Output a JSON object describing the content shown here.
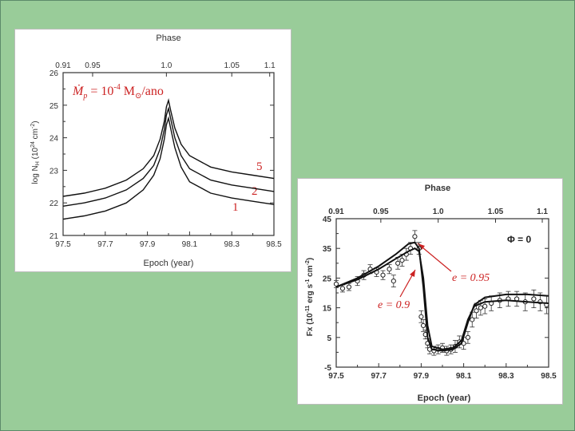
{
  "colors": {
    "background": "#99cc99",
    "annotation": "#cc2222",
    "curve": "#111111"
  },
  "chart_data": [
    {
      "type": "line",
      "title": "Phase",
      "xlabel": "Epoch (year)",
      "ylabel_parts": [
        "log N",
        "H",
        " (10",
        "24",
        " cm",
        "-2",
        ")"
      ],
      "xlim": [
        97.5,
        98.5
      ],
      "ylim": [
        21,
        26
      ],
      "x_ticks": [
        "97.5",
        "97.7",
        "97.9",
        "98.1",
        "98.3",
        "98.5"
      ],
      "y_ticks": [
        "21",
        "22",
        "23",
        "24",
        "25",
        "26"
      ],
      "phase_ticks": [
        {
          "epoch": 97.5,
          "label": "0.91"
        },
        {
          "epoch": 97.64,
          "label": "0.95"
        },
        {
          "epoch": 97.99,
          "label": "1.0"
        },
        {
          "epoch": 98.3,
          "label": "1.05"
        },
        {
          "epoch": 98.48,
          "label": "1.1"
        }
      ],
      "formula": {
        "mdot": "Ṁ",
        "sub": "p",
        "eq": " = 10",
        "exp": "-4",
        "mass": " M",
        "sun": "⊙",
        "unit": "/ano"
      },
      "series": [
        {
          "name": "5",
          "label": "5",
          "peak": 25.15,
          "x": [
            97.5,
            97.6,
            97.7,
            97.8,
            97.88,
            97.93,
            97.96,
            97.98,
            97.99,
            98.0,
            98.01,
            98.03,
            98.06,
            98.1,
            98.2,
            98.3,
            98.4,
            98.5
          ],
          "y": [
            22.2,
            22.3,
            22.45,
            22.7,
            23.05,
            23.45,
            23.95,
            24.5,
            24.95,
            25.15,
            24.85,
            24.3,
            23.8,
            23.45,
            23.1,
            22.95,
            22.85,
            22.75
          ]
        },
        {
          "name": "2",
          "label": "2",
          "peak": 24.9,
          "x": [
            97.5,
            97.6,
            97.7,
            97.8,
            97.88,
            97.93,
            97.96,
            97.98,
            97.99,
            98.0,
            98.01,
            98.03,
            98.06,
            98.1,
            98.2,
            98.3,
            98.4,
            98.5
          ],
          "y": [
            21.9,
            22.0,
            22.15,
            22.4,
            22.75,
            23.15,
            23.65,
            24.25,
            24.7,
            24.9,
            24.6,
            24.0,
            23.45,
            23.05,
            22.7,
            22.55,
            22.45,
            22.35
          ]
        },
        {
          "name": "1",
          "label": "1",
          "peak": 24.6,
          "x": [
            97.5,
            97.6,
            97.7,
            97.8,
            97.88,
            97.93,
            97.96,
            97.98,
            97.99,
            98.0,
            98.01,
            98.03,
            98.06,
            98.1,
            98.2,
            98.3,
            98.4,
            98.5
          ],
          "y": [
            21.5,
            21.6,
            21.75,
            22.0,
            22.4,
            22.85,
            23.35,
            23.95,
            24.4,
            24.6,
            24.3,
            23.7,
            23.1,
            22.65,
            22.3,
            22.15,
            22.05,
            21.95
          ]
        }
      ]
    },
    {
      "type": "line",
      "title": "Phase",
      "xlabel": "Epoch (year)",
      "ylabel_parts": [
        "Fx (10",
        "-11",
        " erg s",
        "-1",
        " cm",
        "-2",
        ")"
      ],
      "xlim": [
        97.5,
        98.5
      ],
      "ylim": [
        -5,
        45
      ],
      "x_ticks": [
        "97.5",
        "97.7",
        "97.9",
        "98.1",
        "98.3",
        "98.5"
      ],
      "y_ticks": [
        "-5",
        "5",
        "15",
        "25",
        "35",
        "45"
      ],
      "phase_ticks": [
        {
          "epoch": 97.5,
          "label": "0.91"
        },
        {
          "epoch": 97.71,
          "label": "0.95"
        },
        {
          "epoch": 97.98,
          "label": "1.0"
        },
        {
          "epoch": 98.25,
          "label": "1.05"
        },
        {
          "epoch": 98.47,
          "label": "1.1"
        }
      ],
      "legend": "Φ = 0",
      "annotations": [
        "e = 0.95",
        "e = 0.9"
      ],
      "series": [
        {
          "name": "e = 0.95",
          "x": [
            97.5,
            97.6,
            97.7,
            97.78,
            97.84,
            97.87,
            97.89,
            97.91,
            97.93,
            97.95,
            98.0,
            98.05,
            98.09,
            98.12,
            98.15,
            98.2,
            98.3,
            98.4,
            98.5
          ],
          "y": [
            22,
            25,
            29,
            33,
            36.5,
            37,
            35,
            22,
            5,
            1,
            0.5,
            1,
            3,
            10,
            16,
            18.5,
            19.5,
            19.5,
            19
          ]
        },
        {
          "name": "e = 0.9",
          "x": [
            97.5,
            97.6,
            97.7,
            97.78,
            97.84,
            97.87,
            97.89,
            97.91,
            97.93,
            97.95,
            98.0,
            98.05,
            98.09,
            98.12,
            98.15,
            98.2,
            98.3,
            98.4,
            98.5
          ],
          "y": [
            22,
            24.5,
            28,
            31.5,
            34,
            35,
            34,
            25,
            9,
            2,
            1,
            1.5,
            4,
            11,
            15.5,
            17,
            17.5,
            17,
            16.5
          ]
        },
        {
          "name": "data",
          "x": [
            97.5,
            97.53,
            97.56,
            97.6,
            97.63,
            97.66,
            97.69,
            97.72,
            97.75,
            97.77,
            97.79,
            97.81,
            97.83,
            97.85,
            97.87,
            97.89,
            97.9,
            97.91,
            97.92,
            97.93,
            97.94,
            97.96,
            97.98,
            98.0,
            98.02,
            98.04,
            98.06,
            98.08,
            98.1,
            98.12,
            98.14,
            98.16,
            98.18,
            98.2,
            98.23,
            98.27,
            98.31,
            98.35,
            98.39,
            98.43,
            98.46,
            98.49
          ],
          "y": [
            23,
            21.5,
            22,
            24,
            26,
            28,
            27,
            26,
            28,
            24,
            30,
            31,
            33,
            35,
            39,
            35,
            12,
            9,
            6,
            3,
            1,
            0.5,
            1,
            1.5,
            0.5,
            1,
            2,
            3.5,
            3,
            5,
            11,
            14,
            15,
            15.5,
            16.5,
            17.5,
            18,
            18,
            17,
            18,
            17,
            16
          ],
          "err": [
            1.2,
            1.2,
            1.2,
            1.5,
            1.5,
            1.5,
            1.5,
            1.5,
            1.5,
            2,
            2,
            2,
            2,
            2,
            2,
            2,
            2,
            2,
            1.5,
            1.5,
            1.5,
            1.5,
            1.5,
            1.5,
            1.5,
            1.5,
            2,
            2,
            2,
            2,
            2.5,
            2.5,
            2.5,
            2.5,
            2.5,
            2.5,
            2.5,
            2.5,
            3,
            3,
            3,
            3
          ]
        }
      ]
    }
  ]
}
